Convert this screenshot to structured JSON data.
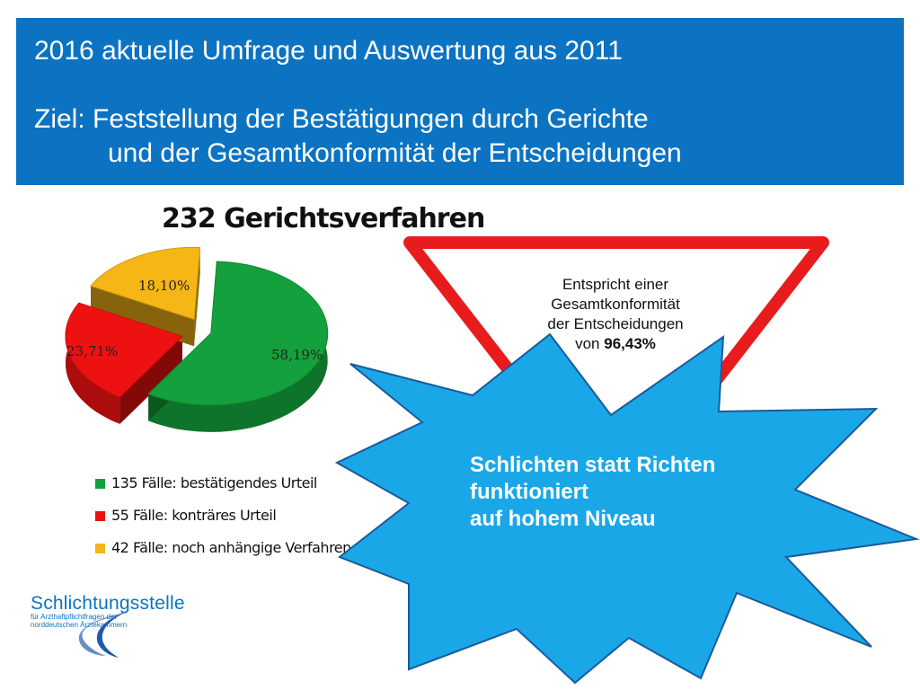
{
  "header": {
    "line1": "2016 aktuelle Umfrage und Auswertung aus 2011",
    "line2": "Ziel: Feststellung der Bestätigungen durch Gerichte",
    "line3": "und der Gesamtkonformität der Entscheidungen"
  },
  "chart_data": {
    "type": "pie",
    "title": "232 Gerichtsverfahren",
    "slices": [
      {
        "label": "135 Fälle:  bestätigendes Urteil",
        "value": 58.19,
        "display": "58,19%",
        "color": "#14a03c"
      },
      {
        "label": "55 Fälle: konträres Urteil",
        "value": 23.71,
        "display": "23,71%",
        "color": "#ee1111"
      },
      {
        "label": "42 Fälle: noch anhängige Verfahren",
        "value": 18.1,
        "display": "18,10%",
        "color": "#f6b616"
      }
    ],
    "legend_position": "bottom"
  },
  "triangle": {
    "lines": [
      "Entspricht einer",
      "Gesamtkonformität",
      "der Entscheidungen"
    ],
    "prefix": "von ",
    "value": "96,43%",
    "border_color": "#e81c1c"
  },
  "star": {
    "lines": [
      "Schlichten statt Richten",
      "funktioniert",
      "auf hohem Niveau"
    ],
    "color": "#1aa7e8"
  },
  "logo": {
    "name": "Schlichtungsstelle",
    "sub1": "für Arzthaftpflichtfragen der",
    "sub2": "norddeutschen Ärztekammern"
  }
}
